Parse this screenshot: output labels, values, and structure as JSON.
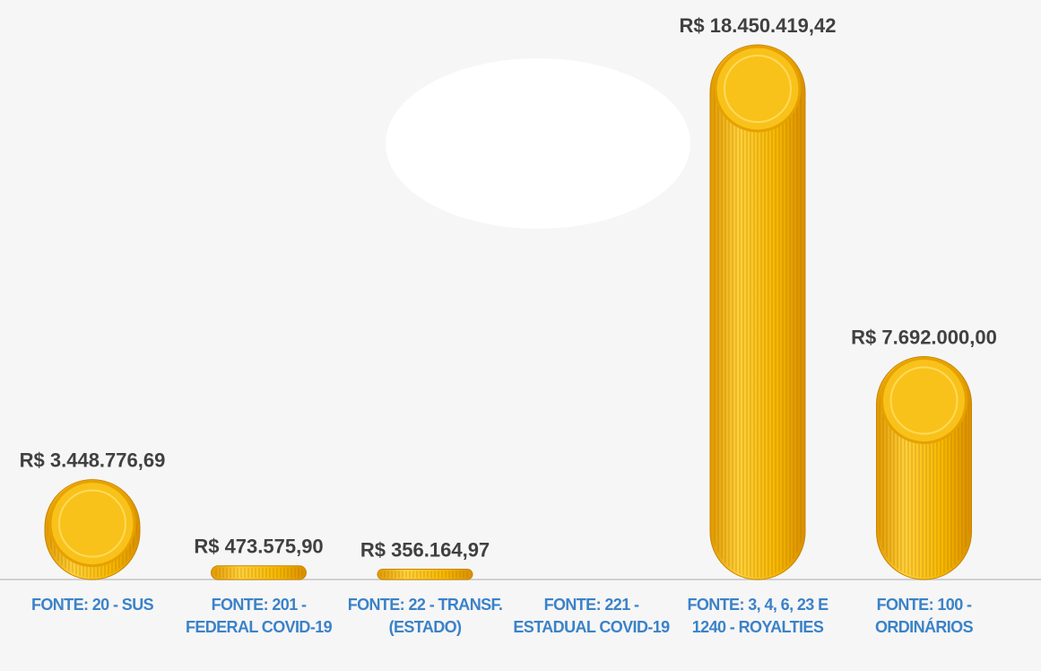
{
  "chart_data": {
    "type": "bar",
    "categories": [
      "FONTE: 20 - SUS",
      "FONTE: 201 - FEDERAL COVID-19",
      "FONTE: 22 - TRANSF. (ESTADO)",
      "FONTE: 221 - ESTADUAL COVID-19",
      "FONTE: 3, 4, 6, 23 E 1240 - ROYALTIES",
      "FONTE: 100 - ORDINÁRIOS"
    ],
    "values": [
      3448776.69,
      473575.9,
      356164.97,
      null,
      18450419.42,
      7692000.0
    ],
    "value_labels": [
      "R$ 3.448.776,69",
      "R$ 473.575,90",
      "R$ 356.164,97",
      null,
      "R$ 18.450.419,42",
      "R$ 7.692.000,00"
    ],
    "color": "#f2b705"
  }
}
